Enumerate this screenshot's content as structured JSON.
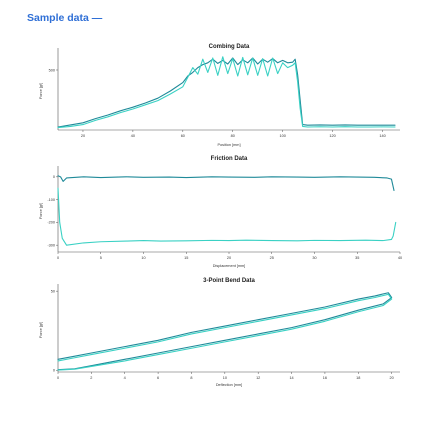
{
  "page": {
    "heading": "Sample data —"
  },
  "colors": {
    "heading": "#2f6fd6",
    "series_a": "#1f8a99",
    "series_b": "#3ad1c4",
    "axis": "#555555"
  },
  "chart_data": [
    {
      "type": "line",
      "title": "Combing Data",
      "xlabel": "Position [mm]",
      "ylabel": "Force [gf]",
      "xlim": [
        10,
        147
      ],
      "ylim": [
        0,
        650
      ],
      "xticks": [
        20,
        40,
        60,
        80,
        100,
        120,
        140
      ],
      "yticks": [
        500
      ],
      "series": [
        {
          "x": [
            10,
            15,
            20,
            25,
            30,
            35,
            40,
            45,
            50,
            55,
            60,
            62,
            64,
            66,
            68,
            70,
            72,
            74,
            76,
            78,
            80,
            82,
            84,
            86,
            88,
            90,
            92,
            94,
            96,
            98,
            100,
            102,
            104,
            105,
            106,
            107,
            108,
            110,
            115,
            120,
            125,
            130,
            135,
            140,
            145
          ],
          "y": [
            25,
            42,
            60,
            95,
            125,
            160,
            190,
            225,
            265,
            325,
            395,
            450,
            480,
            520,
            545,
            560,
            590,
            555,
            580,
            550,
            600,
            545,
            585,
            560,
            600,
            550,
            590,
            565,
            595,
            560,
            580,
            560,
            565,
            590,
            460,
            250,
            45,
            40,
            42,
            40,
            42,
            40,
            40,
            40,
            40
          ]
        },
        {
          "x": [
            10,
            15,
            20,
            25,
            30,
            35,
            40,
            45,
            50,
            55,
            60,
            62,
            64,
            66,
            68,
            70,
            72,
            74,
            76,
            78,
            80,
            82,
            84,
            86,
            88,
            90,
            92,
            94,
            96,
            98,
            100,
            102,
            104,
            105,
            106,
            107,
            108,
            110,
            115,
            120,
            125,
            130,
            135,
            140,
            145
          ],
          "y": [
            20,
            30,
            45,
            80,
            110,
            145,
            175,
            210,
            245,
            300,
            360,
            440,
            520,
            465,
            590,
            480,
            600,
            455,
            610,
            470,
            595,
            450,
            605,
            460,
            600,
            455,
            595,
            450,
            600,
            470,
            560,
            520,
            540,
            560,
            400,
            180,
            30,
            25,
            27,
            25,
            28,
            25,
            25,
            26,
            25
          ]
        }
      ]
    },
    {
      "type": "line",
      "title": "Friction Data",
      "xlabel": "Displacement [mm]",
      "ylabel": "Force [gf]",
      "xlim": [
        0,
        40
      ],
      "ylim": [
        -330,
        30
      ],
      "xticks": [
        0,
        5,
        10,
        15,
        20,
        25,
        30,
        35,
        40
      ],
      "yticks": [
        0,
        -100,
        -200,
        -300
      ],
      "series": [
        {
          "x": [
            0,
            0.3,
            0.6,
            1,
            3,
            5,
            8,
            10,
            13,
            15,
            18,
            20,
            23,
            25,
            28,
            30,
            33,
            35,
            37,
            38.5,
            39,
            39.3
          ],
          "y": [
            5,
            0,
            -20,
            -5,
            0,
            -3,
            0,
            -2,
            -1,
            -3,
            0,
            -1,
            -2,
            0,
            -1,
            -2,
            0,
            -1,
            -2,
            -5,
            -10,
            -60
          ]
        },
        {
          "x": [
            39.5,
            39.2,
            39,
            38,
            36,
            33,
            30,
            28,
            25,
            22,
            20,
            18,
            15,
            12,
            10,
            8,
            5,
            3,
            1,
            0.5,
            0.2,
            0
          ],
          "y": [
            -200,
            -260,
            -275,
            -280,
            -278,
            -280,
            -279,
            -281,
            -280,
            -278,
            -280,
            -279,
            -281,
            -282,
            -280,
            -282,
            -285,
            -290,
            -300,
            -270,
            -200,
            -50
          ]
        }
      ]
    },
    {
      "type": "line",
      "title": "3-Point Bend Data",
      "xlabel": "Deflection [mm]",
      "ylabel": "Force [gf]",
      "xlim": [
        0,
        20.5
      ],
      "ylim": [
        -1,
        52
      ],
      "xticks": [
        0,
        2,
        4,
        6,
        8,
        10,
        12,
        14,
        16,
        18,
        20
      ],
      "yticks": [
        0,
        50
      ],
      "series": [
        {
          "x": [
            0,
            1,
            2,
            4,
            6,
            8,
            10,
            12,
            14,
            16,
            18,
            19,
            19.8,
            20,
            19.5,
            18,
            16,
            14,
            12,
            10,
            8,
            6,
            4,
            2,
            1,
            0
          ],
          "y": [
            7,
            9,
            11,
            15,
            19,
            24,
            28,
            32,
            36,
            40,
            45,
            47,
            49,
            46,
            42,
            38,
            32,
            27,
            23,
            19,
            15,
            11,
            7,
            3,
            1,
            0.5
          ]
        },
        {
          "x": [
            0,
            1,
            2,
            4,
            6,
            8,
            10,
            12,
            14,
            16,
            18,
            19,
            19.8,
            20,
            19.5,
            18,
            16,
            14,
            12,
            10,
            8,
            6,
            4,
            2,
            1,
            0
          ],
          "y": [
            6,
            8,
            10,
            14,
            18,
            23,
            27,
            31,
            35,
            39,
            44,
            46,
            48,
            45,
            41,
            37,
            31,
            26,
            22,
            18,
            14,
            10,
            6,
            2.5,
            0.8,
            0.2
          ]
        }
      ]
    }
  ]
}
